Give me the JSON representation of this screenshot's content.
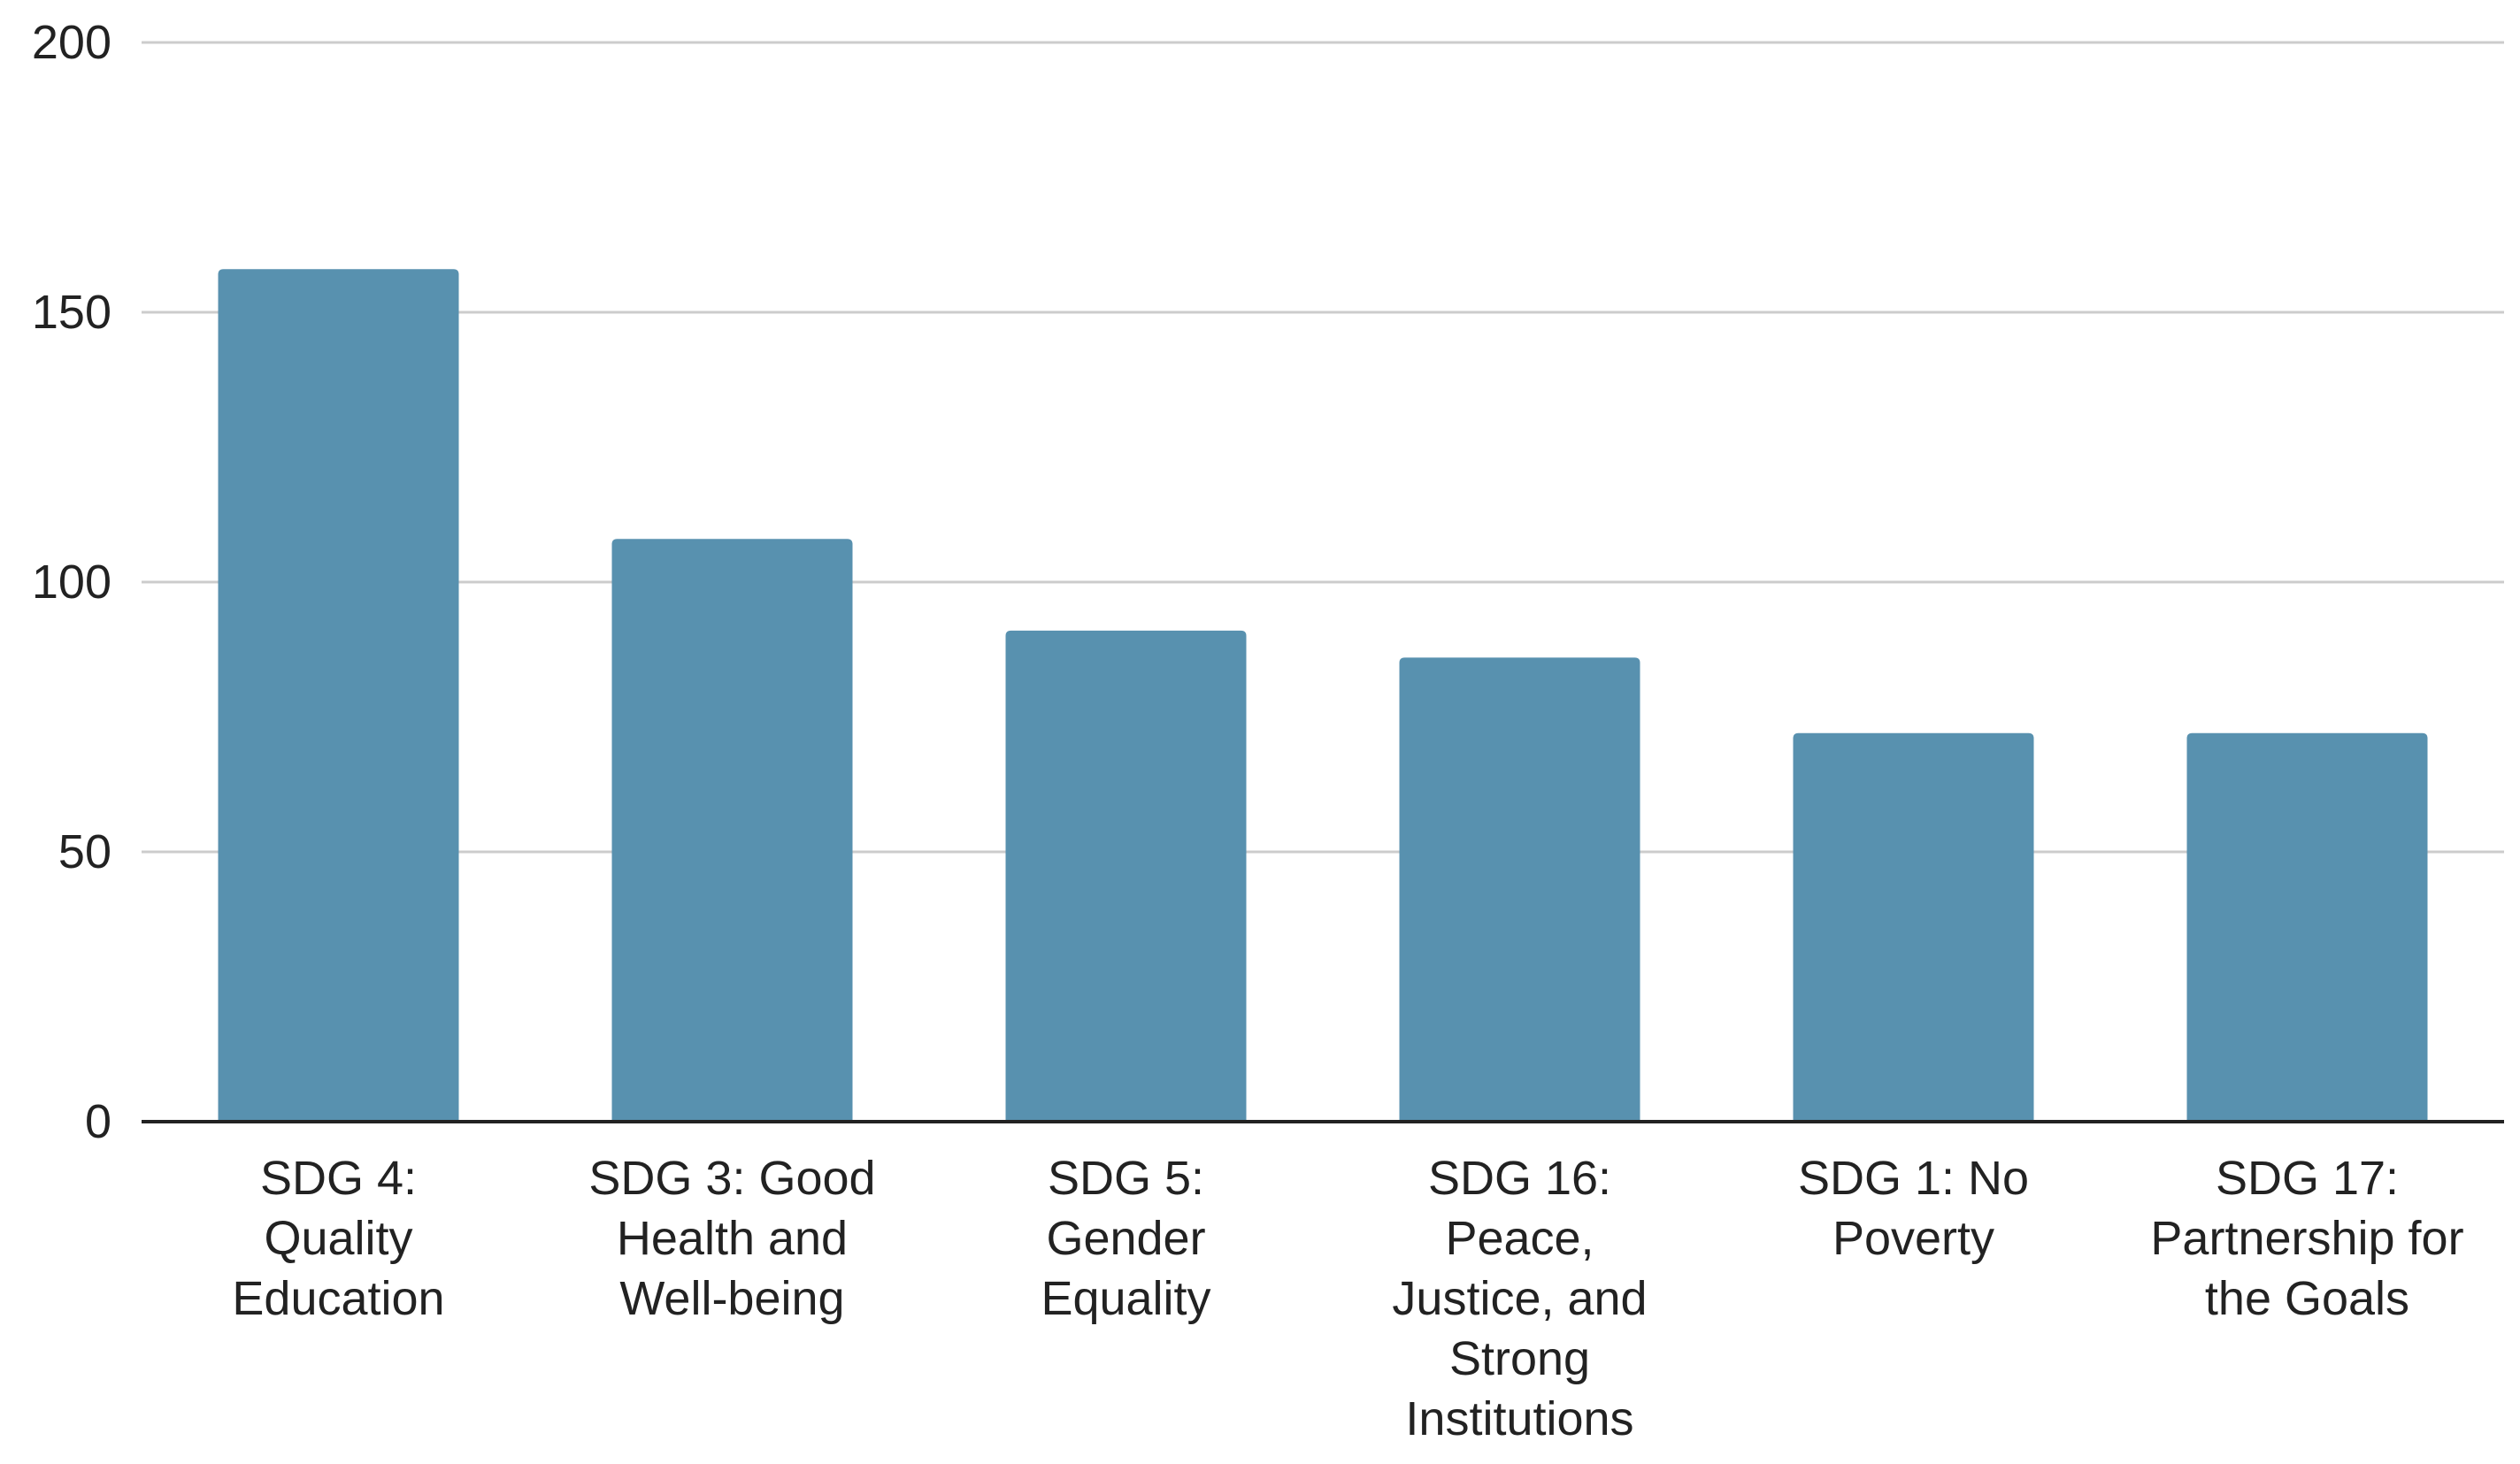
{
  "chart_data": {
    "type": "bar",
    "title": "",
    "xlabel": "",
    "ylabel": "",
    "categories": [
      "SDG 4: Quality Education",
      "SDG 3: Good Health and Well-being",
      "SDG 5: Gender Equality",
      "SDG 16: Peace, Justice, and Strong Institutions",
      "SDG 1: No Poverty",
      "SDG 17: Partnership for the Goals"
    ],
    "category_label_lines": [
      [
        "SDG 4:",
        "Quality",
        "Education"
      ],
      [
        "SDG 3: Good",
        "Health and",
        "Well-being"
      ],
      [
        "SDG 5:",
        "Gender",
        "Equality"
      ],
      [
        "SDG 16:",
        "Peace,",
        "Justice, and",
        "Strong",
        "Institutions"
      ],
      [
        "SDG 1: No",
        "Poverty"
      ],
      [
        "SDG 17:",
        "Partnership for",
        "the Goals"
      ]
    ],
    "values": [
      158,
      108,
      91,
      86,
      72,
      72
    ],
    "ylim": [
      0,
      200
    ],
    "yticks": [
      "0",
      "50",
      "100",
      "150",
      "200"
    ],
    "grid": true,
    "legend": "none",
    "bar_color": "#5891af"
  }
}
